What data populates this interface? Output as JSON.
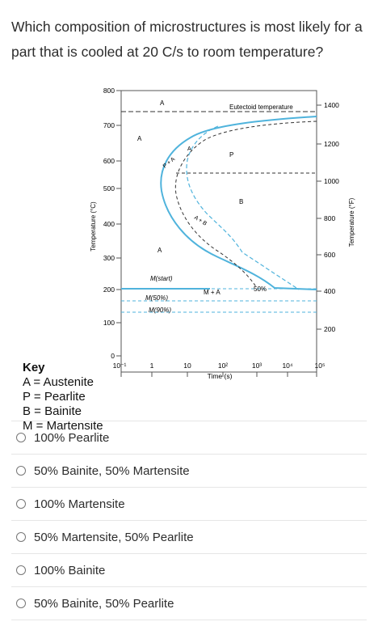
{
  "question": {
    "text": "Which composition of microstructures is most likely for a part that is cooled at 20 C/s to room temperature?"
  },
  "diagram": {
    "left_axis_label": "Temperature (°C)",
    "right_axis_label": "Temperature (°F)",
    "x_axis_label": "Time (s)",
    "left_ticks": [
      "800",
      "700",
      "600",
      "500",
      "400",
      "300",
      "200",
      "100",
      "0"
    ],
    "right_ticks": [
      "1400",
      "1200",
      "1000",
      "800",
      "600",
      "400",
      "200"
    ],
    "x_ticks": [
      "10⁻¹",
      "1",
      "10",
      "10²",
      "10³",
      "10⁴",
      "10⁵"
    ],
    "labels": {
      "a_top": "A",
      "a_upper": "A",
      "a_mid": "A",
      "eutectoid": "Eutectoid temperature",
      "p_plus_a": "P + A",
      "a_plus_p": "A",
      "p": "P",
      "b": "B",
      "a_plus_b": "A + B",
      "m_start": "M(start)",
      "m50": "M(50%)",
      "m90": "M(90%)",
      "m_plus_a": "M + A",
      "fifty_pct": "50%"
    },
    "colors": {
      "curve": "#4fb3dc",
      "dash": "#4fb3dc",
      "ink": "#222222"
    }
  },
  "key": {
    "title": "Key",
    "items": [
      "A = Austenite",
      "P = Pearlite",
      "B = Bainite",
      "M = Martensite"
    ]
  },
  "options": [
    "100% Pearlite",
    "50% Bainite, 50% Martensite",
    "100% Martensite",
    "50% Martensite, 50% Pearlite",
    "100% Bainite",
    "50% Bainite, 50% Pearlite"
  ]
}
